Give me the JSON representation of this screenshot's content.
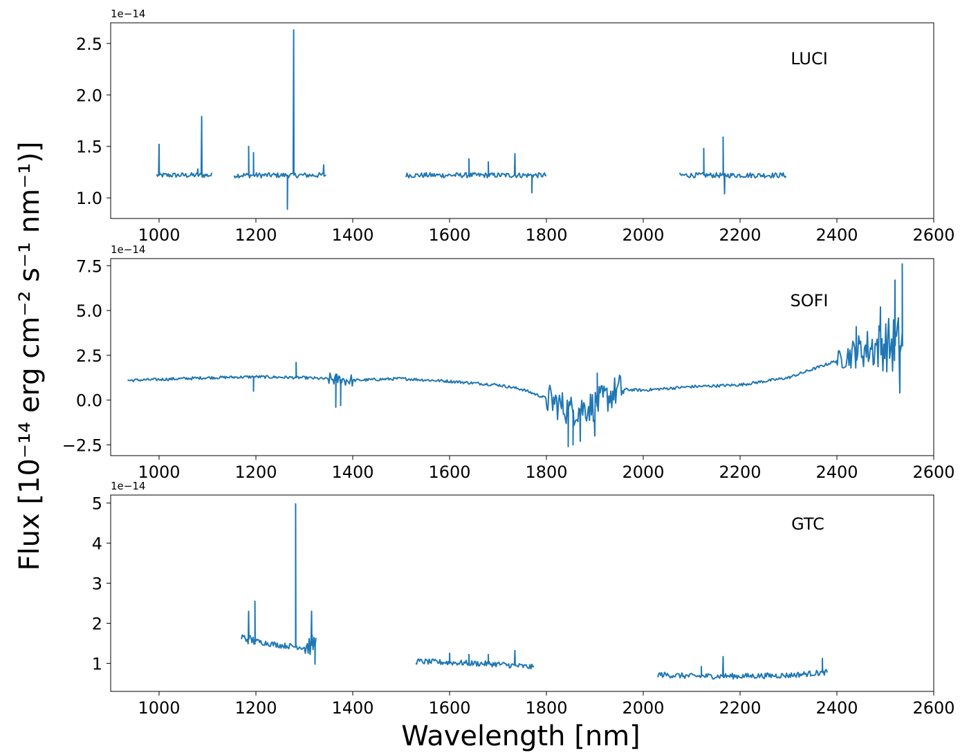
{
  "figure": {
    "xlabel": "Wavelength [nm]",
    "ylabel": "Flux [10⁻¹⁴ erg cm⁻² s⁻¹ nm⁻¹)]",
    "line_color": "#1f77b4"
  },
  "chart_data": [
    {
      "type": "line",
      "label": "LUCI",
      "offset_text": "1e−14",
      "xlim": [
        900,
        2600
      ],
      "ylim": [
        0.8,
        2.7
      ],
      "xticks": [
        1000,
        1200,
        1400,
        1600,
        1800,
        2000,
        2200,
        2400,
        2600
      ],
      "yticks": [
        1.0,
        1.5,
        2.0,
        2.5
      ],
      "ytick_labels": [
        "1.0",
        "1.5",
        "2.0",
        "2.5"
      ],
      "base_level": 1.22,
      "noise": 0.025,
      "segments": [
        [
          995,
          1110
        ],
        [
          1155,
          1345
        ],
        [
          1510,
          1800
        ],
        [
          2075,
          2295
        ]
      ],
      "features": [
        {
          "x": 1000,
          "y": 1.52
        },
        {
          "x": 1088,
          "y": 1.79
        },
        {
          "x": 1080,
          "y": 1.28
        },
        {
          "x": 1185,
          "y": 1.5
        },
        {
          "x": 1195,
          "y": 1.44
        },
        {
          "x": 1265,
          "y": 0.89
        },
        {
          "x": 1278,
          "y": 2.63
        },
        {
          "x": 1340,
          "y": 1.32
        },
        {
          "x": 1640,
          "y": 1.38
        },
        {
          "x": 1680,
          "y": 1.35
        },
        {
          "x": 1735,
          "y": 1.43
        },
        {
          "x": 1770,
          "y": 1.05
        },
        {
          "x": 2125,
          "y": 1.48
        },
        {
          "x": 2165,
          "y": 1.59
        },
        {
          "x": 2168,
          "y": 1.04
        }
      ]
    },
    {
      "type": "line",
      "label": "SOFI",
      "offset_text": "1e−14",
      "xlim": [
        900,
        2600
      ],
      "ylim": [
        -3.1,
        7.9
      ],
      "xticks": [
        1000,
        1200,
        1400,
        1600,
        1800,
        2000,
        2200,
        2400,
        2600
      ],
      "yticks": [
        -2.5,
        0.0,
        2.5,
        5.0,
        7.5
      ],
      "ytick_labels": [
        "−2.5",
        "0.0",
        "2.5",
        "5.0",
        "7.5"
      ],
      "continuum": {
        "x": [
          935,
          1000,
          1100,
          1200,
          1300,
          1400,
          1500,
          1600,
          1700,
          1750,
          1800,
          1850,
          1900,
          1950,
          2000,
          2100,
          2200,
          2300,
          2400,
          2450,
          2500,
          2535
        ],
        "y": [
          1.1,
          1.15,
          1.25,
          1.3,
          1.25,
          1.1,
          1.2,
          1.05,
          0.85,
          0.6,
          0.1,
          -0.6,
          -0.3,
          0.6,
          0.55,
          0.75,
          0.85,
          1.25,
          2.2,
          2.8,
          3.1,
          3.0
        ]
      },
      "segments": [
        [
          935,
          2535
        ]
      ],
      "features": [
        {
          "x": 1195,
          "y": 0.5
        },
        {
          "x": 1283,
          "y": 2.1
        },
        {
          "x": 1365,
          "y": -0.4
        },
        {
          "x": 1375,
          "y": -0.3
        },
        {
          "x": 1845,
          "y": -2.6
        },
        {
          "x": 1855,
          "y": -2.5
        },
        {
          "x": 1870,
          "y": -2.3
        },
        {
          "x": 1900,
          "y": -2.0
        },
        {
          "x": 1905,
          "y": 1.5
        },
        {
          "x": 2440,
          "y": 4.1
        },
        {
          "x": 2490,
          "y": 5.2
        },
        {
          "x": 2520,
          "y": 6.7
        },
        {
          "x": 2530,
          "y": 0.4
        },
        {
          "x": 2535,
          "y": 7.6
        }
      ]
    },
    {
      "type": "line",
      "label": "GTC",
      "offset_text": "1e−14",
      "xlim": [
        900,
        2600
      ],
      "ylim": [
        0.3,
        5.2
      ],
      "xticks": [
        1000,
        1200,
        1400,
        1600,
        1800,
        2000,
        2200,
        2400,
        2600
      ],
      "yticks": [
        1,
        2,
        3,
        4,
        5
      ],
      "ytick_labels": [
        "1",
        "2",
        "3",
        "4",
        "5"
      ],
      "continuum": {
        "x": [
          1170,
          1200,
          1250,
          1300,
          1325,
          1530,
          1600,
          1700,
          1775,
          2030,
          2100,
          2200,
          2300,
          2380
        ],
        "y": [
          1.65,
          1.55,
          1.45,
          1.4,
          1.5,
          1.05,
          1.02,
          0.98,
          0.9,
          0.72,
          0.68,
          0.68,
          0.7,
          0.78
        ]
      },
      "noise": 0.07,
      "segments": [
        [
          1170,
          1325
        ],
        [
          1530,
          1775
        ],
        [
          2030,
          2380
        ]
      ],
      "features": [
        {
          "x": 1185,
          "y": 2.3
        },
        {
          "x": 1198,
          "y": 2.55
        },
        {
          "x": 1282,
          "y": 4.98
        },
        {
          "x": 1315,
          "y": 2.3
        },
        {
          "x": 1322,
          "y": 0.98
        },
        {
          "x": 1600,
          "y": 1.25
        },
        {
          "x": 1640,
          "y": 1.22
        },
        {
          "x": 1680,
          "y": 1.22
        },
        {
          "x": 1735,
          "y": 1.32
        },
        {
          "x": 2120,
          "y": 0.92
        },
        {
          "x": 2165,
          "y": 1.17
        },
        {
          "x": 2370,
          "y": 1.12
        }
      ]
    }
  ]
}
